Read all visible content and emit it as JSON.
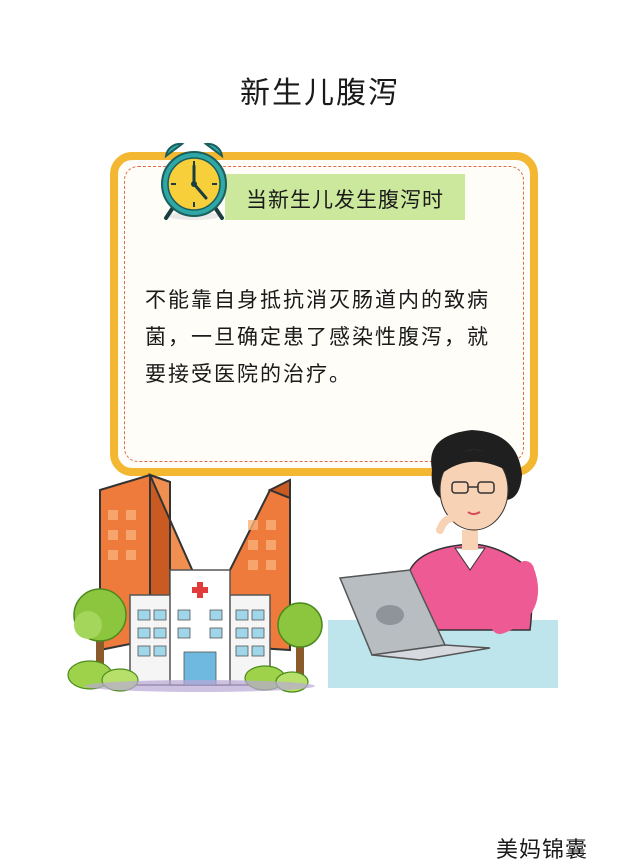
{
  "title": "新生儿腹泻",
  "card": {
    "subtitle": "当新生儿发生腹泻时",
    "body": "不能靠自身抵抗消灭肠道内的致病菌，一旦确定患了感染性腹泻，就要接受医院的治疗。"
  },
  "footer": {
    "brand": "美妈锦囊"
  },
  "colors": {
    "card_border": "#f4b731",
    "dashed_line": "#e06a4c",
    "subtitle_highlight": "#cbe89c"
  }
}
